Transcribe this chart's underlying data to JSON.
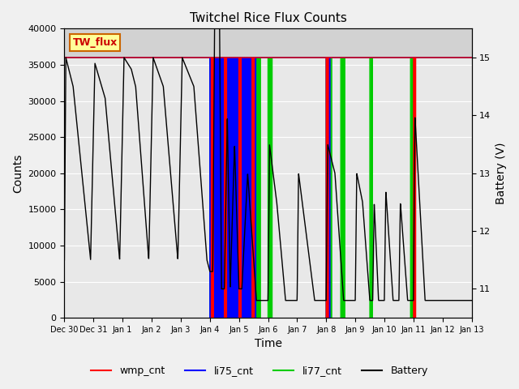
{
  "title": "Twitchel Rice Flux Counts",
  "xlabel": "Time",
  "ylabel_left": "Counts",
  "ylabel_right": "Battery (V)",
  "ylim_left": [
    0,
    40000
  ],
  "ylim_right": [
    10.5,
    15.5
  ],
  "xlim": [
    0,
    14
  ],
  "xtick_positions": [
    0,
    1,
    2,
    3,
    4,
    5,
    6,
    7,
    8,
    9,
    10,
    11,
    12,
    13,
    14
  ],
  "xtick_labels": [
    "Dec 30",
    "Dec 31",
    "Jan 1",
    "Jan 2",
    "Jan 3",
    "Jan 4",
    "Jan 5",
    "Jan 6",
    "Jan 7",
    "Jan 8",
    "Jan 9",
    "Jan 10",
    "Jan 11",
    "Jan 12",
    "Jan 13"
  ],
  "bg_color": "#f0f0f0",
  "plot_bg_color": "#e8e8e8",
  "shaded_band_color": "#d0d0d0",
  "shaded_band": [
    36000,
    40000
  ],
  "tw_flux_label": "TW_flux",
  "tw_flux_bg": "#ffff99",
  "tw_flux_fg": "#cc0000",
  "tw_flux_edge": "#cc6600",
  "li77_level": 36000,
  "battery_scale_min": 10.5,
  "battery_scale_max": 15.5,
  "legend_entries": [
    "wmp_cnt",
    "li75_cnt",
    "li77_cnt",
    "Battery"
  ],
  "legend_colors": [
    "#ff0000",
    "#0000ff",
    "#00cc00",
    "#000000"
  ],
  "yticks_left": [
    0,
    5000,
    10000,
    15000,
    20000,
    25000,
    30000,
    35000,
    40000
  ],
  "line_colors": {
    "wmp_cnt": "#ff0000",
    "li75_cnt": "#0000ff",
    "li77_cnt": "#00cc00",
    "battery": "#000000"
  }
}
